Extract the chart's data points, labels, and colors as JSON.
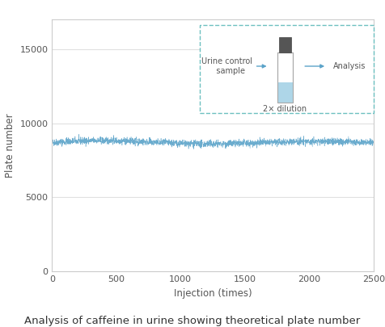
{
  "title": "Analysis of caffeine in urine showing theoretical plate number",
  "xlabel": "Injection (times)",
  "ylabel": "Plate number",
  "xlim": [
    0,
    2500
  ],
  "ylim": [
    0,
    17000
  ],
  "yticks": [
    0,
    5000,
    10000,
    15000
  ],
  "xticks": [
    0,
    500,
    1000,
    1500,
    2000,
    2500
  ],
  "n_points": 2500,
  "mean_value": 8700,
  "noise_std": 120,
  "line_color": "#5ba3c9",
  "background_color": "#ffffff",
  "plot_bg_color": "#ffffff",
  "inset_text_left": "Urine control\n  sample",
  "inset_text_right": "Analysis",
  "inset_text_bottom": "2× dilution",
  "inset_border_color": "#6dc0c0",
  "arrow_color": "#5ba3c9",
  "grid_color": "#e0e0e0",
  "title_fontsize": 9.5,
  "axis_label_fontsize": 8.5,
  "tick_fontsize": 8
}
